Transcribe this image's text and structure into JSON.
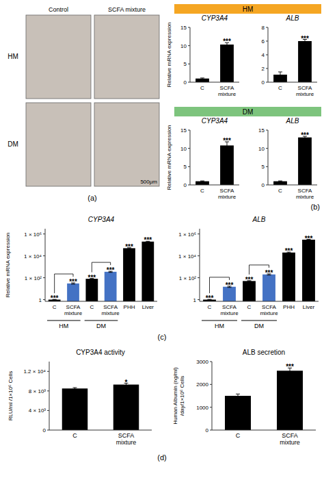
{
  "chart_data": [
    {
      "type": "image",
      "panel_label": "(a)",
      "categories": [
        "Control",
        "SCFA mixture"
      ],
      "rows": [
        "HM",
        "DM"
      ],
      "color": "#C8C0B8",
      "annotations": [
        "500μm"
      ]
    },
    {
      "type": "bar",
      "header": {
        "text": "HM",
        "color": "#F5A623"
      },
      "ylabel": "Relative mRNA expression",
      "title": "CYP3A4",
      "categories": [
        "C",
        "SCFA\nmixture"
      ],
      "values": [
        1.0,
        10.3
      ],
      "errors": [
        0.15,
        0.5
      ],
      "color": "#000000",
      "ylim": [
        0,
        15
      ],
      "yticks": [
        0,
        5,
        10,
        15
      ],
      "annotations": [
        null,
        "***"
      ]
    },
    {
      "type": "bar",
      "title": "ALB",
      "categories": [
        "C",
        "SCFA\nmixture"
      ],
      "values": [
        1.1,
        6.0
      ],
      "errors": [
        0.4,
        0.25
      ],
      "color": "#000000",
      "ylim": [
        0,
        8
      ],
      "yticks": [
        0,
        2,
        4,
        6,
        8
      ],
      "annotations": [
        null,
        "***"
      ]
    },
    {
      "type": "bar",
      "header": {
        "text": "DM",
        "color": "#7DC47D"
      },
      "ylabel": "Relative mRNA expression",
      "title": "CYP3A4",
      "categories": [
        "C",
        "SCFA\nmixture"
      ],
      "values": [
        1.0,
        10.8
      ],
      "errors": [
        0.1,
        1.0
      ],
      "color": "#000000",
      "ylim": [
        0,
        15
      ],
      "yticks": [
        0,
        5,
        10,
        15
      ],
      "annotations": [
        null,
        "***"
      ]
    },
    {
      "type": "bar",
      "title": "ALB",
      "panel_label": "(b)",
      "categories": [
        "C",
        "SCFA\nmixture"
      ],
      "values": [
        1.0,
        13.0
      ],
      "errors": [
        0.1,
        0.3
      ],
      "color": "#000000",
      "ylim": [
        0,
        15
      ],
      "yticks": [
        0,
        5,
        10,
        15
      ],
      "annotations": [
        null,
        "***"
      ]
    },
    {
      "type": "bar",
      "log": "y",
      "title": "CYP3A4",
      "ylabel": "Relative mRNA expression",
      "categories": [
        "C",
        "SCFA\nmixture",
        "C",
        "SCFA\nmixture",
        "PHH",
        "Liver"
      ],
      "group_labels": [
        "HM",
        "HM",
        "DM",
        "DM",
        null,
        null
      ],
      "values": [
        1.0,
        30.0,
        80.0,
        350.0,
        50000.0,
        200000.0
      ],
      "errors": [
        0.05,
        4.0,
        6.0,
        40.0,
        5000.0,
        15000.0
      ],
      "colors": [
        "#000000",
        "#4472C4",
        "#000000",
        "#4472C4",
        "#000000",
        "#000000"
      ],
      "ylim": [
        0.7,
        3000000
      ],
      "yticks": [
        1,
        {
          "value": 100,
          "label": "1 × 10²"
        },
        {
          "value": 10000,
          "label": "1 × 10⁴"
        },
        {
          "value": 1000000,
          "label": "1 × 10⁶"
        }
      ],
      "annotations": [
        "***",
        "***",
        "***",
        "***",
        "***",
        "***"
      ]
    },
    {
      "type": "bar",
      "log": "y",
      "title": "ALB",
      "panel_label": "(c)",
      "categories": [
        "C",
        "SCFA\nmixture",
        "C",
        "SCFA\nmixture",
        "PHH",
        "Liver"
      ],
      "group_labels": [
        "HM",
        "HM",
        "DM",
        "DM",
        null,
        null
      ],
      "values": [
        1.0,
        15.0,
        50.0,
        200.0,
        20000.0,
        300000.0
      ],
      "errors": [
        0.05,
        2.0,
        4.0,
        25.0,
        2000.0,
        20000.0
      ],
      "colors": [
        "#000000",
        "#4472C4",
        "#000000",
        "#4472C4",
        "#000000",
        "#000000"
      ],
      "ylim": [
        0.7,
        3000000
      ],
      "yticks": [
        1,
        {
          "value": 100,
          "label": "1 × 10²"
        },
        {
          "value": 10000,
          "label": "1 × 10⁴"
        },
        {
          "value": 1000000,
          "label": "1 × 10⁶"
        }
      ],
      "annotations": [
        "***",
        "***",
        "***",
        "***",
        "***",
        "***"
      ]
    },
    {
      "type": "bar",
      "title": "CYP3A4 activity",
      "ylabel": "RLU/ml /1×10⁶ Cells",
      "categories": [
        "C",
        "SCFA\nmixture"
      ],
      "values": [
        8500,
        9300
      ],
      "errors": [
        180,
        280
      ],
      "color": "#000000",
      "ylim": [
        0,
        14000
      ],
      "yticks": [
        0,
        {
          "value": 4000,
          "label": "4 × 10³"
        },
        {
          "value": 8000,
          "label": "8 × 10³"
        },
        {
          "value": 12000,
          "label": "1.2 × 10⁴"
        }
      ],
      "annotations": [
        null,
        "*"
      ]
    },
    {
      "type": "bar",
      "title": "ALB secretion",
      "panel_label": "(d)",
      "ylabel": "Human Albumin (ng/ml)\n/day/1×10⁶ Cells",
      "categories": [
        "C",
        "SCFA\nmixture"
      ],
      "values": [
        1500,
        2600
      ],
      "errors": [
        80,
        120
      ],
      "color": "#000000",
      "ylim": [
        0,
        3000
      ],
      "yticks": [
        0,
        1000,
        2000,
        3000
      ],
      "annotations": [
        null,
        "***"
      ]
    }
  ]
}
